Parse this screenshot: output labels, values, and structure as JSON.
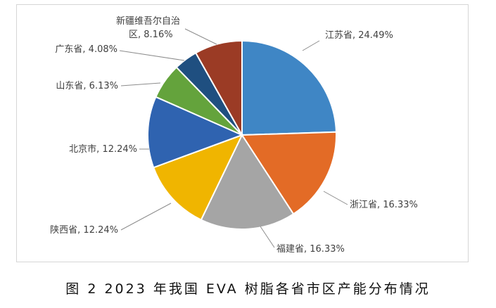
{
  "chart_data": {
    "type": "pie",
    "title": "",
    "slices": [
      {
        "label": "江苏省",
        "value": 24.49,
        "display": "24.49%",
        "color": "#3f86c5"
      },
      {
        "label": "浙江省",
        "value": 16.33,
        "display": "16.33%",
        "color": "#e36b26"
      },
      {
        "label": "福建省",
        "value": 16.33,
        "display": "16.33%",
        "color": "#a5a5a5"
      },
      {
        "label": "陕西省",
        "value": 12.24,
        "display": "12.24%",
        "color": "#f0b500"
      },
      {
        "label": "北京市",
        "value": 12.24,
        "display": "12.24%",
        "color": "#2f63b0"
      },
      {
        "label": "山东省",
        "value": 6.13,
        "display": "6.13%",
        "color": "#64a33c"
      },
      {
        "label": "广东省",
        "value": 4.08,
        "display": "4.08%",
        "color": "#1f4f80"
      },
      {
        "label": "新疆维吾尔自治区",
        "value": 8.16,
        "display": "8.16%",
        "color": "#9b3b25"
      }
    ]
  },
  "caption": "图 2  2023 年我国 EVA 树脂各省市区产能分布情况"
}
